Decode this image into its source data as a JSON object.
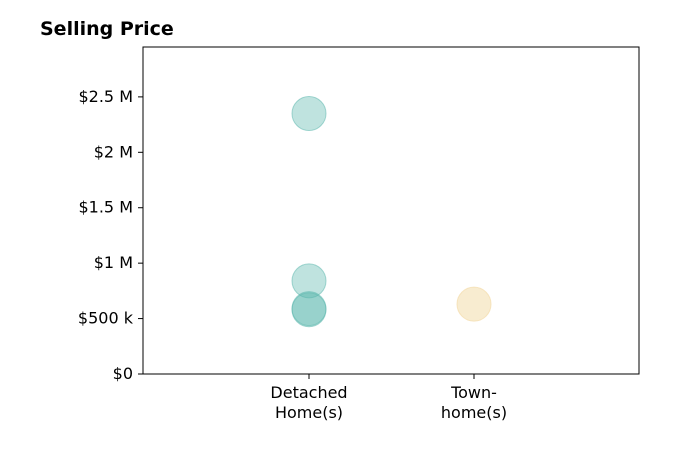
{
  "chart_data": {
    "type": "scatter",
    "title": "Selling Price",
    "xlabel": "",
    "ylabel": "",
    "categories": [
      [
        "Detached",
        "Home(s)"
      ],
      [
        "Town-",
        "home(s)"
      ]
    ],
    "y_ticks": [
      0,
      500000,
      1000000,
      1500000,
      2000000,
      2500000
    ],
    "y_tick_labels": [
      "$0",
      "$500 k",
      "$1 M",
      "$1.5 M",
      "$2 M",
      "$2.5 M"
    ],
    "ylim": [
      0,
      2950000
    ],
    "grid": false,
    "series": [
      {
        "category_index": 0,
        "color": "#5fb8ae",
        "opacity": 0.4,
        "values": [
          2350000,
          840000,
          590000,
          580000
        ]
      },
      {
        "category_index": 1,
        "color": "#f3dcaa",
        "opacity": 0.55,
        "values": [
          630000
        ]
      }
    ]
  }
}
